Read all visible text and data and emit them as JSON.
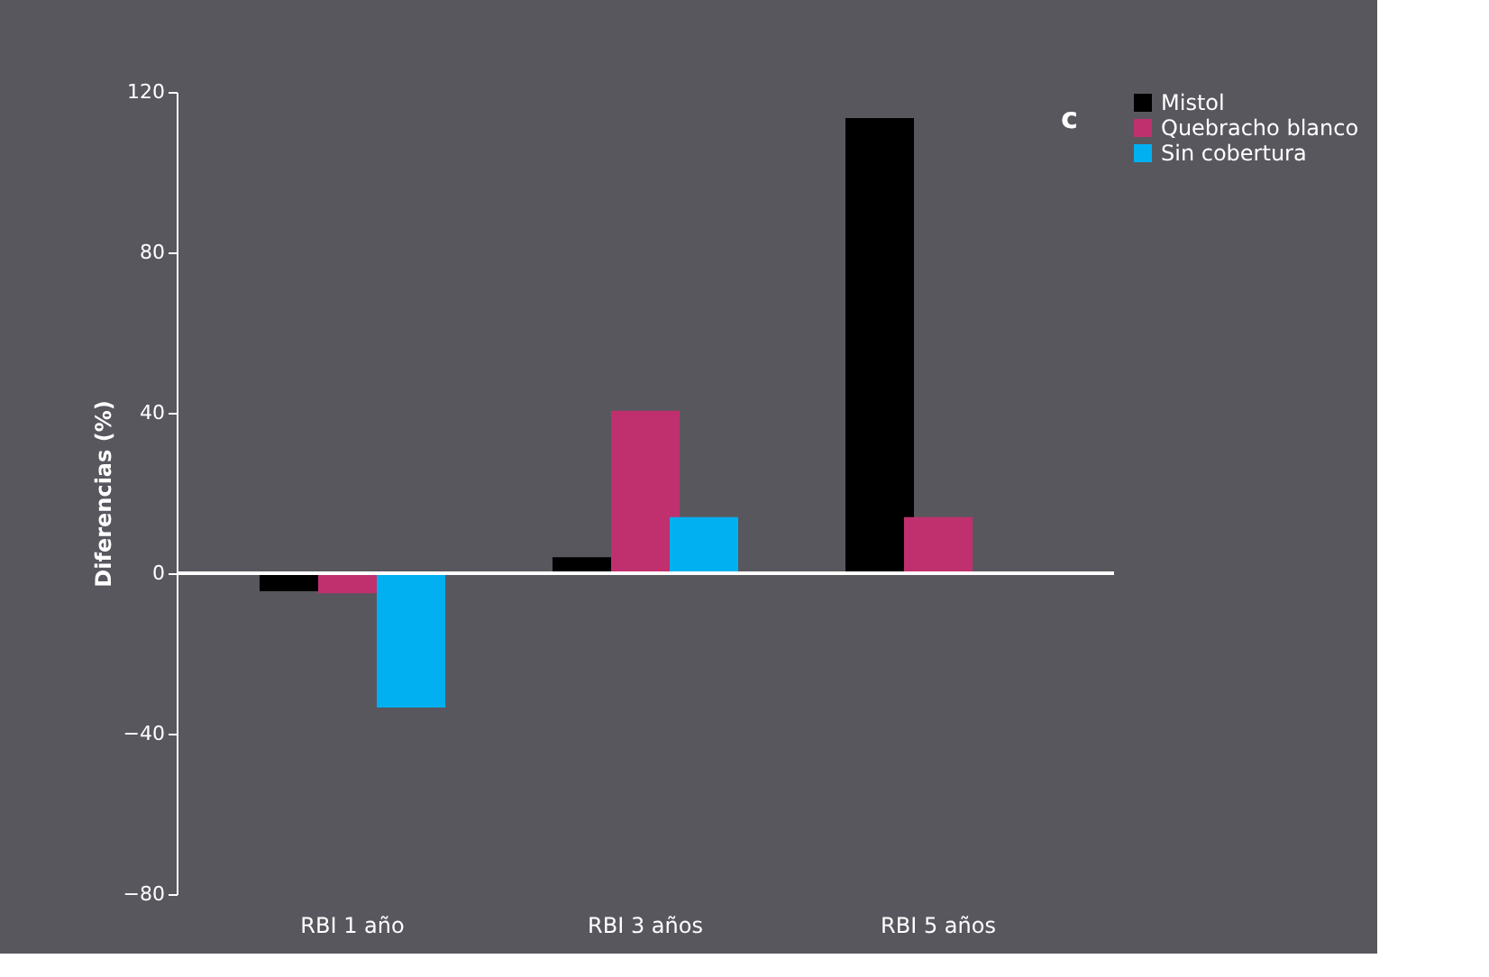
{
  "chart_data": {
    "type": "bar",
    "ylabel": "Diferencias (%)",
    "categories": [
      "RBI 1 año",
      "RBI 3 años",
      "RBI 5 años"
    ],
    "series": [
      {
        "name": "Mistol",
        "color": "#000000",
        "values": [
          -4.5,
          4,
          113.5
        ]
      },
      {
        "name": "Quebracho blanco",
        "color": "#c0306e",
        "values": [
          -5,
          40.5,
          14
        ]
      },
      {
        "name": "Sin cobertura",
        "color": "#00b0f0",
        "values": [
          -33.5,
          14,
          null
        ]
      }
    ],
    "ylim": [
      -80,
      120
    ],
    "yticks": [
      -80,
      -40,
      0,
      40,
      80,
      120
    ],
    "legend": "right",
    "annotations": [
      "c"
    ]
  }
}
